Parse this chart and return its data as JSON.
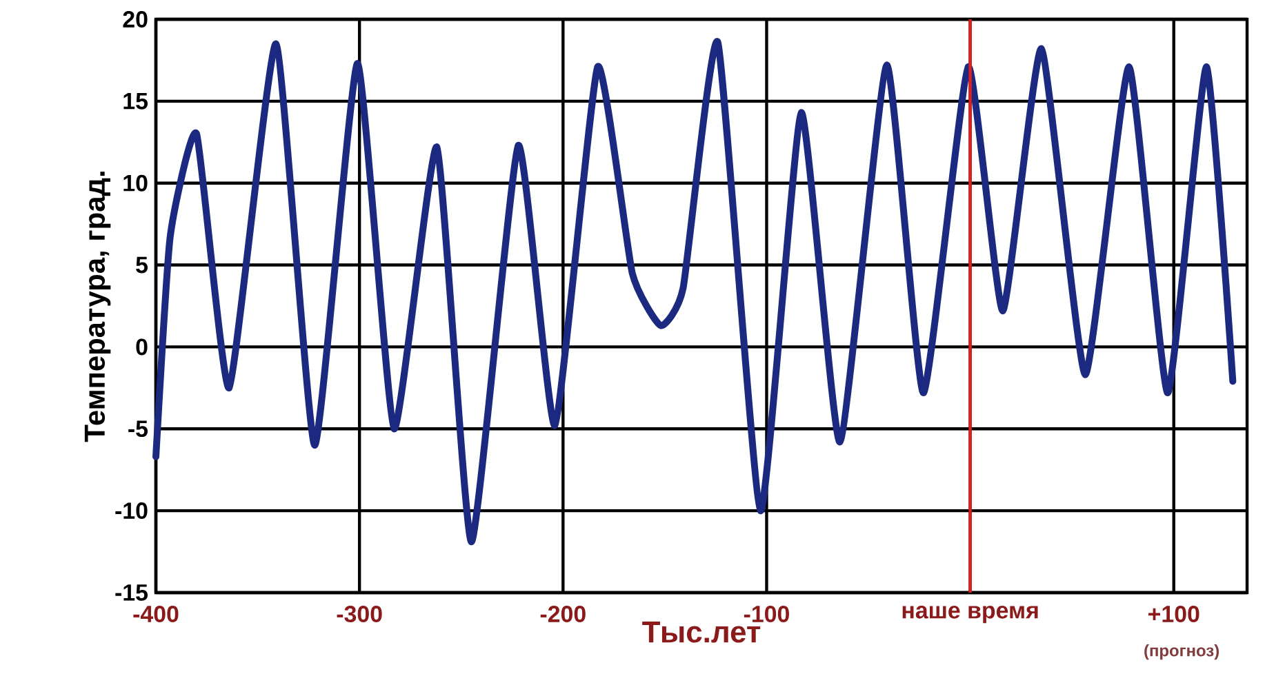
{
  "chart_data": {
    "type": "line",
    "xlabel": "Тыс.лет",
    "ylabel": "Температура, град.",
    "xlim": [
      -400,
      136
    ],
    "ylim": [
      -15,
      20
    ],
    "xticks": [
      -400,
      -300,
      -200,
      -100,
      {
        "value": 0,
        "label": "наше время"
      },
      {
        "value": 100,
        "label": "+100"
      }
    ],
    "yticks": [
      -15,
      -10,
      -5,
      0,
      5,
      10,
      15,
      20
    ],
    "grid": true,
    "annotations": [
      "(прогноз)"
    ],
    "ref_lines": [
      {
        "axis": "x",
        "value": 0,
        "color": "#e02020"
      }
    ],
    "series": [
      {
        "color": "#1b2a80",
        "line_style": "solid",
        "marker": "none",
        "x": [
          -400,
          -393,
          -380,
          -364,
          -341,
          -322,
          -301,
          -283,
          -262,
          -245,
          -222,
          -204,
          -183,
          -166,
          -152,
          -141,
          -124,
          -103,
          -83,
          -64,
          -41,
          -23,
          -1,
          16,
          35,
          56.5,
          78,
          97,
          116,
          129
        ],
        "values": [
          -6.7,
          6.7,
          13.0,
          -2.5,
          18.5,
          -6.0,
          17.3,
          -5.0,
          12.2,
          -11.9,
          12.3,
          -4.8,
          17.1,
          4.5,
          1.3,
          3.6,
          18.6,
          -10.0,
          14.3,
          -5.8,
          17.2,
          -2.8,
          17.1,
          2.2,
          18.2,
          -1.7,
          17.1,
          -2.8,
          17.1,
          -2.1
        ]
      }
    ]
  }
}
